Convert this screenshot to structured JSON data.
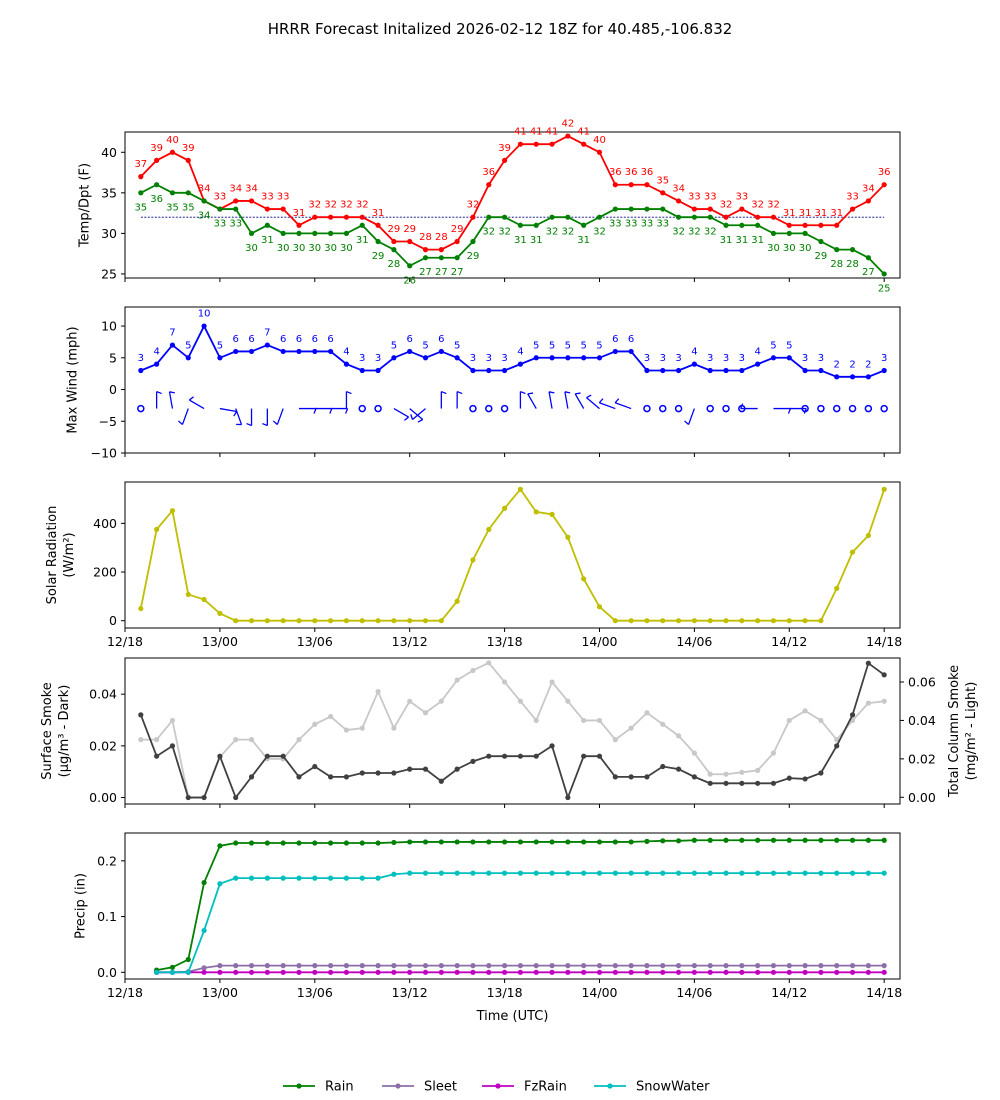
{
  "title": "HRRR Forecast Initalized 2026-02-12 18Z for 40.485,-106.832",
  "x_axis": {
    "label": "Time (UTC)",
    "tick_labels": [
      "12/18",
      "13/00",
      "13/06",
      "13/12",
      "13/18",
      "14/00",
      "14/06",
      "14/12",
      "14/18"
    ]
  },
  "legend": {
    "placement": "bottom-center",
    "entries": [
      {
        "label": "Rain",
        "color": "#008000"
      },
      {
        "label": "Sleet",
        "color": "#8c6fa8"
      },
      {
        "label": "FzRain",
        "color": "#c000c0"
      },
      {
        "label": "SnowWater",
        "color": "#00bfbf"
      }
    ]
  },
  "chart_data": [
    {
      "type": "line",
      "ylabel": "Temp/Dpt (F)",
      "ylim": [
        24.5,
        42.5
      ],
      "yticks": [
        25,
        30,
        35,
        40
      ],
      "yticklabels": [
        "25",
        "30",
        "35",
        "40"
      ],
      "reference_line": 32,
      "x_start": 1,
      "series": [
        {
          "name": "Temperature",
          "color": "#ff0000",
          "label_offset": -13,
          "values": [
            37,
            39,
            40,
            39,
            34,
            33,
            34,
            34,
            33,
            33,
            31,
            32,
            32,
            32,
            32,
            31,
            29,
            29,
            28,
            28,
            29,
            32,
            36,
            39,
            41,
            41,
            41,
            42,
            41,
            40,
            36,
            36,
            36,
            35,
            34,
            33,
            33,
            32,
            33,
            32,
            32,
            31,
            31,
            31,
            31,
            33,
            34,
            36
          ]
        },
        {
          "name": "Dewpoint",
          "color": "#008000",
          "label_offset": 14,
          "values": [
            35,
            36,
            35,
            35,
            34,
            33,
            33,
            30,
            31,
            30,
            30,
            30,
            30,
            30,
            31,
            29,
            28,
            26,
            27,
            27,
            27,
            29,
            32,
            32,
            31,
            31,
            32,
            32,
            31,
            32,
            33,
            33,
            33,
            33,
            32,
            32,
            32,
            31,
            31,
            31,
            30,
            30,
            30,
            29,
            28,
            28,
            27,
            25
          ]
        }
      ]
    },
    {
      "type": "line",
      "ylabel": "Max Wind (mph)",
      "ylim": [
        -10,
        13
      ],
      "yticks": [
        -10,
        -5,
        0,
        5,
        10
      ],
      "yticklabels": [
        "−10",
        "−5",
        "0",
        "5",
        "10"
      ],
      "x_start": 1,
      "series": [
        {
          "name": "Max Wind",
          "color": "#0000ff",
          "label_offset": -13,
          "values": [
            3,
            4,
            7,
            5,
            10,
            5,
            6,
            6,
            7,
            6,
            6,
            6,
            6,
            4,
            3,
            3,
            5,
            6,
            5,
            6,
            5,
            3,
            3,
            3,
            4,
            5,
            5,
            5,
            5,
            5,
            6,
            6,
            3,
            3,
            3,
            4,
            3,
            3,
            3,
            4,
            5,
            5,
            3,
            3,
            2,
            2,
            2,
            3
          ]
        }
      ],
      "barbs": {
        "y": -3,
        "color": "#0000ff",
        "directions": [
          0,
          0,
          350,
          200,
          300,
          100,
          160,
          180,
          180,
          200,
          90,
          90,
          90,
          0,
          0,
          0,
          120,
          130,
          230,
          0,
          0,
          0,
          0,
          0,
          0,
          330,
          350,
          350,
          330,
          310,
          290,
          290,
          240,
          0,
          0,
          200,
          0,
          0,
          0,
          270,
          90,
          90,
          0,
          0,
          0,
          0,
          0,
          0
        ]
      }
    },
    {
      "type": "line",
      "ylabel": "Solar Radiation (W/m²)",
      "ylabel_line1": "Solar Radiation",
      "ylabel_line2": "(W/m²)",
      "ylim": [
        -30,
        570
      ],
      "yticks": [
        0,
        200,
        400
      ],
      "yticklabels": [
        "0",
        "200",
        "400"
      ],
      "x_start": 1,
      "series": [
        {
          "name": "Solar Radiation",
          "color": "#bfbf00",
          "values": [
            50,
            375,
            452,
            108,
            87,
            30,
            0,
            0,
            0,
            0,
            0,
            0,
            0,
            0,
            0,
            0,
            0,
            0,
            0,
            0,
            80,
            250,
            375,
            462,
            540,
            447,
            437,
            343,
            172,
            57,
            0,
            0,
            0,
            0,
            0,
            0,
            0,
            0,
            0,
            0,
            0,
            0,
            0,
            0,
            133,
            282,
            350,
            540
          ]
        }
      ]
    },
    {
      "type": "line",
      "ylabel_left": "Surface Smoke (μg/m³ - Dark)",
      "ylabel_left_line1": "Surface Smoke",
      "ylabel_left_line2": "(μg/m³ - Dark)",
      "ylabel_right": "Total Column Smoke (mg/m² - Light)",
      "ylabel_right_line1": "Total Column Smoke",
      "ylabel_right_line2": "(mg/m² - Light)",
      "ylim_left": [
        -0.0025,
        0.054
      ],
      "ylim_right": [
        -0.0035,
        0.0725
      ],
      "yticks_left": [
        0.0,
        0.02,
        0.04
      ],
      "yticklabels_left": [
        "0.00",
        "0.02",
        "0.04"
      ],
      "yticks_right": [
        0.0,
        0.02,
        0.04,
        0.06
      ],
      "yticklabels_right": [
        "0.00",
        "0.02",
        "0.04",
        "0.06"
      ],
      "x_start": 1,
      "series": [
        {
          "name": "Surface Smoke",
          "axis": "left",
          "color": "#404040",
          "values": [
            0.032,
            0.016,
            0.02,
            0.0,
            0.0,
            0.016,
            0.0,
            0.008,
            0.016,
            0.016,
            0.008,
            0.012,
            0.008,
            0.008,
            0.0095,
            0.0095,
            0.0095,
            0.011,
            0.011,
            0.0063,
            0.011,
            0.014,
            0.016,
            0.016,
            0.016,
            0.016,
            0.02,
            0.0,
            0.016,
            0.016,
            0.008,
            0.008,
            0.008,
            0.012,
            0.011,
            0.008,
            0.0055,
            0.0055,
            0.0055,
            0.0055,
            0.0055,
            0.0075,
            0.0072,
            0.0095,
            0.02,
            0.032,
            0.052,
            0.0475
          ]
        },
        {
          "name": "Total Column Smoke",
          "axis": "right",
          "color": "#c8c8c8",
          "values": [
            0.03,
            0.03,
            0.04,
            0.0,
            0.0,
            0.021,
            0.03,
            0.03,
            0.02,
            0.02,
            0.03,
            0.038,
            0.042,
            0.035,
            0.036,
            0.055,
            0.036,
            0.05,
            0.044,
            0.05,
            0.061,
            0.066,
            0.07,
            0.06,
            0.05,
            0.04,
            0.06,
            0.05,
            0.04,
            0.04,
            0.03,
            0.036,
            0.044,
            0.038,
            0.032,
            0.023,
            0.012,
            0.012,
            0.013,
            0.014,
            0.023,
            0.04,
            0.045,
            0.04,
            0.03,
            0.04,
            0.049,
            0.05
          ]
        }
      ]
    },
    {
      "type": "line",
      "ylabel": "Precip (in)",
      "ylim": [
        -0.012,
        0.25
      ],
      "yticks": [
        0.0,
        0.1,
        0.2
      ],
      "yticklabels": [
        "0.0",
        "0.1",
        "0.2"
      ],
      "x_start": 2,
      "series": [
        {
          "name": "Rain",
          "color": "#008000",
          "values": [
            0.004,
            0.009,
            0.023,
            0.161,
            0.227,
            0.232,
            0.232,
            0.232,
            0.232,
            0.232,
            0.232,
            0.232,
            0.232,
            0.232,
            0.232,
            0.233,
            0.234,
            0.234,
            0.234,
            0.234,
            0.234,
            0.234,
            0.234,
            0.234,
            0.234,
            0.234,
            0.234,
            0.234,
            0.234,
            0.234,
            0.234,
            0.235,
            0.236,
            0.236,
            0.237,
            0.237,
            0.237,
            0.237,
            0.237,
            0.237,
            0.237,
            0.237,
            0.237,
            0.237,
            0.237,
            0.237,
            0.237
          ]
        },
        {
          "name": "Sleet",
          "color": "#8c6fa8",
          "values": [
            0.0,
            0.0,
            0.001,
            0.008,
            0.012,
            0.012,
            0.012,
            0.012,
            0.012,
            0.012,
            0.012,
            0.012,
            0.012,
            0.012,
            0.012,
            0.012,
            0.012,
            0.012,
            0.012,
            0.012,
            0.012,
            0.012,
            0.012,
            0.012,
            0.012,
            0.012,
            0.012,
            0.012,
            0.012,
            0.012,
            0.012,
            0.012,
            0.012,
            0.012,
            0.012,
            0.012,
            0.012,
            0.012,
            0.012,
            0.012,
            0.012,
            0.012,
            0.012,
            0.012,
            0.012,
            0.012,
            0.012
          ]
        },
        {
          "name": "FzRain",
          "color": "#c000c0",
          "values": [
            0.0,
            0.0,
            0.0,
            0.0,
            0.0,
            0.0,
            0.0,
            0.0,
            0.0,
            0.0,
            0.0,
            0.0,
            0.0,
            0.0,
            0.0,
            0.0,
            0.0,
            0.0,
            0.0,
            0.0,
            0.0,
            0.0,
            0.0,
            0.0,
            0.0,
            0.0,
            0.0,
            0.0,
            0.0,
            0.0,
            0.0,
            0.0,
            0.0,
            0.0,
            0.0,
            0.0,
            0.0,
            0.0,
            0.0,
            0.0,
            0.0,
            0.0,
            0.0,
            0.0,
            0.0,
            0.0,
            0.0
          ]
        },
        {
          "name": "SnowWater",
          "color": "#00bfbf",
          "values": [
            0.0,
            0.0,
            0.0,
            0.075,
            0.159,
            0.169,
            0.169,
            0.169,
            0.169,
            0.169,
            0.169,
            0.169,
            0.169,
            0.169,
            0.169,
            0.176,
            0.178,
            0.178,
            0.178,
            0.178,
            0.178,
            0.178,
            0.178,
            0.178,
            0.178,
            0.178,
            0.178,
            0.178,
            0.178,
            0.178,
            0.178,
            0.178,
            0.178,
            0.178,
            0.178,
            0.178,
            0.178,
            0.178,
            0.178,
            0.178,
            0.178,
            0.178,
            0.178,
            0.178,
            0.178,
            0.178,
            0.178
          ]
        }
      ]
    }
  ]
}
